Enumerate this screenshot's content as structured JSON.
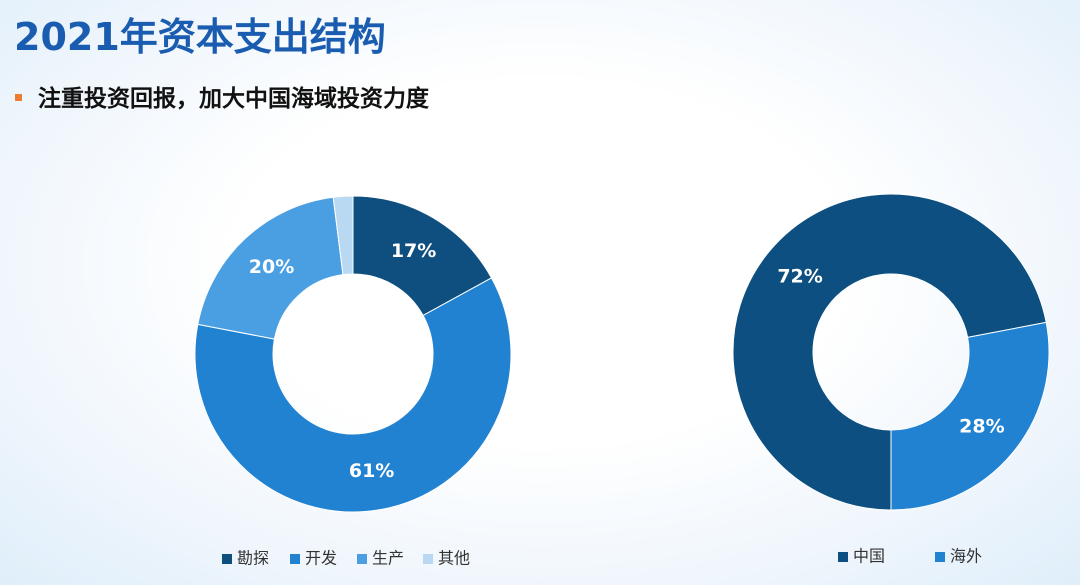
{
  "title": "2021年资本支出结构",
  "subtitle": "注重投资回报，加大中国海域投资力度",
  "chart_data": [
    {
      "type": "donut",
      "categories": [
        "勘探",
        "开发",
        "生产",
        "其他"
      ],
      "values": [
        17,
        61,
        20,
        2
      ],
      "value_labels": [
        "17%",
        "61%",
        "20%",
        null
      ],
      "colors": [
        "#0f4f80",
        "#2282d2",
        "#4a9fe2",
        "#b9d9f3"
      ]
    },
    {
      "type": "donut",
      "categories": [
        "中国",
        "海外"
      ],
      "values": [
        72,
        28
      ],
      "value_labels": [
        "72%",
        "28%"
      ],
      "colors": [
        "#0c4f80",
        "#2282d2"
      ]
    }
  ]
}
